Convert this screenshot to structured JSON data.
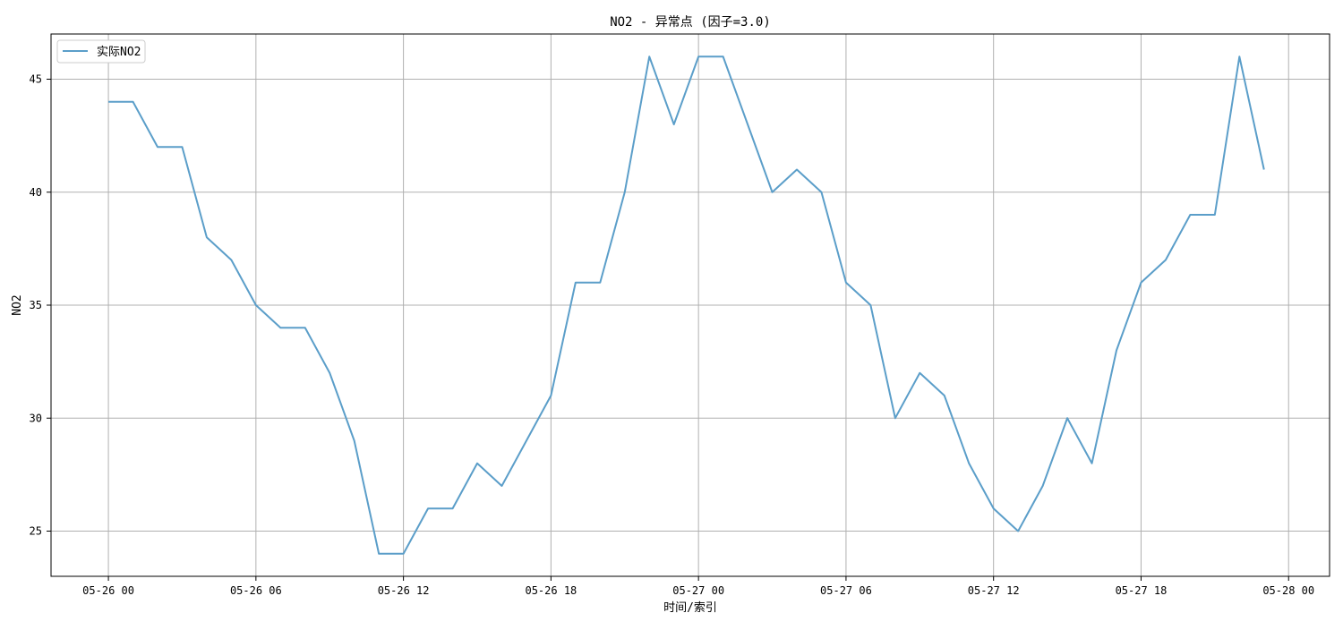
{
  "chart_data": {
    "type": "line",
    "title": "NO2 - 异常点 (因子=3.0)",
    "xlabel": "时间/索引",
    "ylabel": "NO2",
    "x_ticks": [
      "05-26 00",
      "05-26 06",
      "05-26 12",
      "05-26 18",
      "05-27 00",
      "05-27 06",
      "05-27 12",
      "05-27 18",
      "05-28 00"
    ],
    "x_tick_datetimes": [
      "2024-05-26 00:00",
      "2024-05-26 06:00",
      "2024-05-26 12:00",
      "2024-05-26 18:00",
      "2024-05-27 00:00",
      "2024-05-27 06:00",
      "2024-05-27 12:00",
      "2024-05-27 18:00",
      "2024-05-28 00:00"
    ],
    "y_ticks": [
      25,
      30,
      35,
      40,
      45
    ],
    "xlim": [
      "2024-05-25 21:40",
      "2024-05-28 01:40"
    ],
    "ylim": [
      23,
      47
    ],
    "grid": true,
    "legend_position": "top-left",
    "series": [
      {
        "name": "实际NO2",
        "color": "#5b9ec9",
        "x": [
          "2024-05-26 00:00",
          "2024-05-26 01:00",
          "2024-05-26 02:00",
          "2024-05-26 03:00",
          "2024-05-26 04:00",
          "2024-05-26 05:00",
          "2024-05-26 06:00",
          "2024-05-26 07:00",
          "2024-05-26 08:00",
          "2024-05-26 09:00",
          "2024-05-26 10:00",
          "2024-05-26 11:00",
          "2024-05-26 12:00",
          "2024-05-26 13:00",
          "2024-05-26 14:00",
          "2024-05-26 15:00",
          "2024-05-26 16:00",
          "2024-05-26 17:00",
          "2024-05-26 18:00",
          "2024-05-26 19:00",
          "2024-05-26 20:00",
          "2024-05-26 21:00",
          "2024-05-26 22:00",
          "2024-05-26 23:00",
          "2024-05-27 00:00",
          "2024-05-27 01:00",
          "2024-05-27 02:00",
          "2024-05-27 03:00",
          "2024-05-27 04:00",
          "2024-05-27 05:00",
          "2024-05-27 06:00",
          "2024-05-27 07:00",
          "2024-05-27 08:00",
          "2024-05-27 09:00",
          "2024-05-27 10:00",
          "2024-05-27 11:00",
          "2024-05-27 12:00",
          "2024-05-27 13:00",
          "2024-05-27 14:00",
          "2024-05-27 15:00",
          "2024-05-27 16:00",
          "2024-05-27 17:00",
          "2024-05-27 18:00",
          "2024-05-27 19:00",
          "2024-05-27 20:00",
          "2024-05-27 21:00",
          "2024-05-27 22:00",
          "2024-05-27 23:00"
        ],
        "y": [
          44,
          44,
          42,
          42,
          38,
          37,
          35,
          34,
          34,
          32,
          29,
          24,
          24,
          26,
          26,
          28,
          27,
          29,
          31,
          36,
          36,
          40,
          46,
          43,
          46,
          46,
          43,
          40,
          41,
          40,
          36,
          35,
          30,
          32,
          31,
          28,
          26,
          25,
          27,
          30,
          28,
          33,
          36,
          37,
          39,
          39,
          46,
          41
        ]
      }
    ]
  }
}
